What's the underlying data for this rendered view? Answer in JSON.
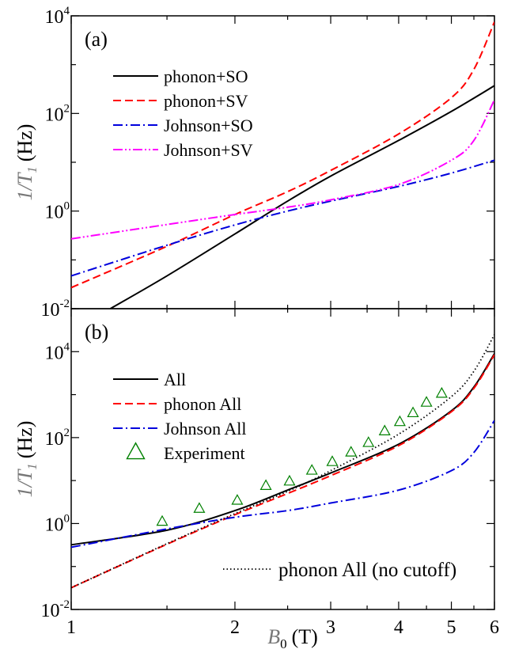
{
  "chart_data": [
    {
      "type": "line",
      "panel_label": "(a)",
      "xlabel": "",
      "ylabel": {
        "prefix": "1/T",
        "sub": "1",
        "unit": "(Hz)"
      },
      "xscale": "log",
      "yscale": "log",
      "xlim": [
        1,
        6
      ],
      "ylim": [
        0.01,
        10000
      ],
      "y_ticks": [
        {
          "base": "10",
          "exp": "-2"
        },
        {
          "base": "10",
          "exp": "0"
        },
        {
          "base": "10",
          "exp": "2"
        },
        {
          "base": "10",
          "exp": "4"
        }
      ],
      "legend_position": "upper-left",
      "series": [
        {
          "name": "phonon+SO",
          "color": "#000000",
          "dash": "solid",
          "x": [
            1.18,
            1.5,
            2.0,
            2.5,
            3.0,
            4.0,
            5.0,
            6.0
          ],
          "y": [
            0.01,
            0.047,
            0.34,
            1.6,
            5.2,
            28,
            110,
            370
          ]
        },
        {
          "name": "phonon+SV",
          "color": "#ff0000",
          "dash": "dashed",
          "x": [
            1.0,
            1.5,
            2.0,
            2.5,
            3.0,
            4.0,
            5.0,
            5.5,
            6.0
          ],
          "y": [
            0.027,
            0.19,
            0.85,
            2.5,
            6.8,
            38,
            210,
            800,
            7500
          ]
        },
        {
          "name": "Johnson+SO",
          "color": "#0000dd",
          "dash": "dashdot",
          "x": [
            1.0,
            1.5,
            2.0,
            2.5,
            3.0,
            4.0,
            5.0,
            6.0
          ],
          "y": [
            0.047,
            0.2,
            0.52,
            1.0,
            1.6,
            3.2,
            6.0,
            11
          ]
        },
        {
          "name": "Johnson+SV",
          "color": "#ff00ff",
          "dash": "dashdotdot",
          "x": [
            1.0,
            1.5,
            2.0,
            2.5,
            3.0,
            4.0,
            5.0,
            5.5,
            6.0
          ],
          "y": [
            0.27,
            0.53,
            0.85,
            1.2,
            1.7,
            3.5,
            11,
            28,
            190
          ]
        }
      ]
    },
    {
      "type": "line",
      "panel_label": "(b)",
      "xlabel": {
        "italic": "B",
        "sub": "0",
        "unit": "(T)"
      },
      "ylabel": {
        "prefix": "1/T",
        "sub": "1",
        "unit": "(Hz)"
      },
      "xscale": "log",
      "yscale": "log",
      "xlim": [
        1,
        6
      ],
      "ylim": [
        0.01,
        100000
      ],
      "x_ticks": [
        "1",
        "2",
        "3",
        "4",
        "5",
        "6"
      ],
      "y_ticks": [
        {
          "base": "10",
          "exp": "-2"
        },
        {
          "base": "10",
          "exp": "0"
        },
        {
          "base": "10",
          "exp": "2"
        },
        {
          "base": "10",
          "exp": "4"
        }
      ],
      "legend_position": "upper-left",
      "series": [
        {
          "name": "All",
          "color": "#000000",
          "dash": "solid",
          "x": [
            1.0,
            1.5,
            2.0,
            2.5,
            3.0,
            4.0,
            5.0,
            5.5,
            6.0
          ],
          "y": [
            0.32,
            0.7,
            2.0,
            6.0,
            15,
            70,
            420,
            1500,
            9000
          ]
        },
        {
          "name": "phonon All",
          "color": "#ff0000",
          "dash": "dashed",
          "x": [
            1.0,
            1.5,
            2.0,
            2.5,
            3.0,
            4.0,
            5.0,
            5.5,
            6.0
          ],
          "y": [
            0.032,
            0.33,
            1.6,
            5.0,
            13,
            65,
            400,
            1400,
            8500
          ]
        },
        {
          "name": "Johnson All",
          "color": "#0000dd",
          "dash": "dashdot",
          "x": [
            1.0,
            1.5,
            2.0,
            2.5,
            3.0,
            4.0,
            5.0,
            5.5,
            6.0
          ],
          "y": [
            0.28,
            0.75,
            1.4,
            2.0,
            3.0,
            6.0,
            17,
            45,
            250
          ]
        },
        {
          "name": "phonon All (no cutoff)",
          "color": "#000000",
          "dash": "dotted",
          "x": [
            1.0,
            1.5,
            2.0,
            2.5,
            3.0,
            4.0,
            5.0,
            5.5,
            6.0
          ],
          "y": [
            0.032,
            0.34,
            1.7,
            5.6,
            17,
            120,
            900,
            3500,
            25000
          ]
        },
        {
          "name": "Experiment",
          "color": "#008000",
          "marker": "triangle-open",
          "x": [
            1.47,
            1.72,
            2.02,
            2.28,
            2.52,
            2.77,
            3.02,
            3.27,
            3.52,
            3.77,
            4.02,
            4.25,
            4.5,
            4.8
          ],
          "y": [
            1.1,
            2.2,
            3.4,
            7.5,
            9.5,
            17,
            27,
            45,
            75,
            140,
            230,
            370,
            650,
            1050
          ]
        }
      ]
    }
  ]
}
